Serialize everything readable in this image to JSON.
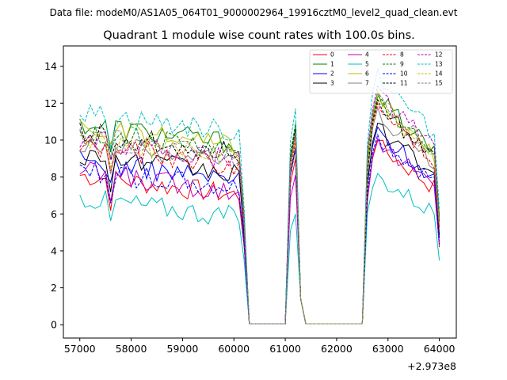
{
  "figure": {
    "suptitle": "Data file: modeM0/AS1A05_064T01_9000002964_19916cztM0_level2_quad_clean.evt"
  },
  "chart_data": {
    "type": "line",
    "title": "Quadrant 1 module wise count rates with 100.0s bins.",
    "xlabel": "",
    "ylabel": "",
    "x_offset_label": "+2.973e8",
    "xlim": [
      56680,
      64330
    ],
    "ylim": [
      -0.72,
      15.1
    ],
    "xticks": [
      57000,
      58000,
      59000,
      60000,
      61000,
      62000,
      63000,
      64000
    ],
    "xtick_labels": [
      "57000",
      "58000",
      "59000",
      "60000",
      "61000",
      "62000",
      "63000",
      "64000"
    ],
    "yticks": [
      0,
      2,
      4,
      6,
      8,
      10,
      12,
      14
    ],
    "ytick_labels": [
      "0",
      "2",
      "4",
      "6",
      "8",
      "10",
      "12",
      "14"
    ],
    "grid": false,
    "legend_position": "top-right",
    "legend_columns": 4,
    "segments": [
      {
        "x_start": 57000,
        "x_end": 60300,
        "step": 100
      },
      {
        "x_start": 60400,
        "x_end": 61000,
        "step": 100
      },
      {
        "x_start": 61100,
        "x_end": 61400,
        "step": 100
      },
      {
        "x_start": 61500,
        "x_end": 62500,
        "step": 100
      },
      {
        "x_start": 62600,
        "x_end": 64000,
        "step": 100
      }
    ],
    "series": [
      {
        "name": "0",
        "color": "#ff0000",
        "dash": "solid",
        "base": 7.0,
        "peak": 9.0,
        "post": 9.5
      },
      {
        "name": "1",
        "color": "#008000",
        "dash": "solid",
        "base": 9.8,
        "peak": 10.7,
        "post": 12.0
      },
      {
        "name": "2",
        "color": "#0000ff",
        "dash": "solid",
        "base": 7.8,
        "peak": 10.4,
        "post": 10.2
      },
      {
        "name": "3",
        "color": "#000000",
        "dash": "solid",
        "base": 8.1,
        "peak": 9.6,
        "post": 10.4
      },
      {
        "name": "4",
        "color": "#bf00bf",
        "dash": "solid",
        "base": 7.2,
        "peak": 8.1,
        "post": 9.6
      },
      {
        "name": "5",
        "color": "#00bfbf",
        "dash": "solid",
        "base": 5.8,
        "peak": 6.0,
        "post": 7.8
      },
      {
        "name": "6",
        "color": "#bfbf00",
        "dash": "solid",
        "base": 9.6,
        "peak": 10.6,
        "post": 11.6
      },
      {
        "name": "7",
        "color": "#808080",
        "dash": "solid",
        "base": 8.8,
        "peak": 10.3,
        "post": 11.2
      },
      {
        "name": "8",
        "color": "#ff0000",
        "dash": "dashed",
        "base": 8.6,
        "peak": 9.9,
        "post": 11.4
      },
      {
        "name": "9",
        "color": "#008000",
        "dash": "dashed",
        "base": 9.4,
        "peak": 10.9,
        "post": 11.8
      },
      {
        "name": "10",
        "color": "#0000ff",
        "dash": "dashed",
        "base": 7.3,
        "peak": 9.5,
        "post": 9.8
      },
      {
        "name": "11",
        "color": "#000000",
        "dash": "dashed",
        "base": 9.3,
        "peak": 10.6,
        "post": 11.6
      },
      {
        "name": "12",
        "color": "#bf00bf",
        "dash": "dashed",
        "base": 8.9,
        "peak": 10.2,
        "post": 12.3
      },
      {
        "name": "13",
        "color": "#00bfbf",
        "dash": "dashed",
        "base": 10.4,
        "peak": 11.7,
        "post": 13.2
      },
      {
        "name": "14",
        "color": "#bfbf00",
        "dash": "dashed",
        "base": 9.0,
        "peak": 10.1,
        "post": 11.9
      },
      {
        "name": "15",
        "color": "#808080",
        "dash": "dashed",
        "base": 9.1,
        "peak": 10.4,
        "post": 12.0
      }
    ]
  }
}
